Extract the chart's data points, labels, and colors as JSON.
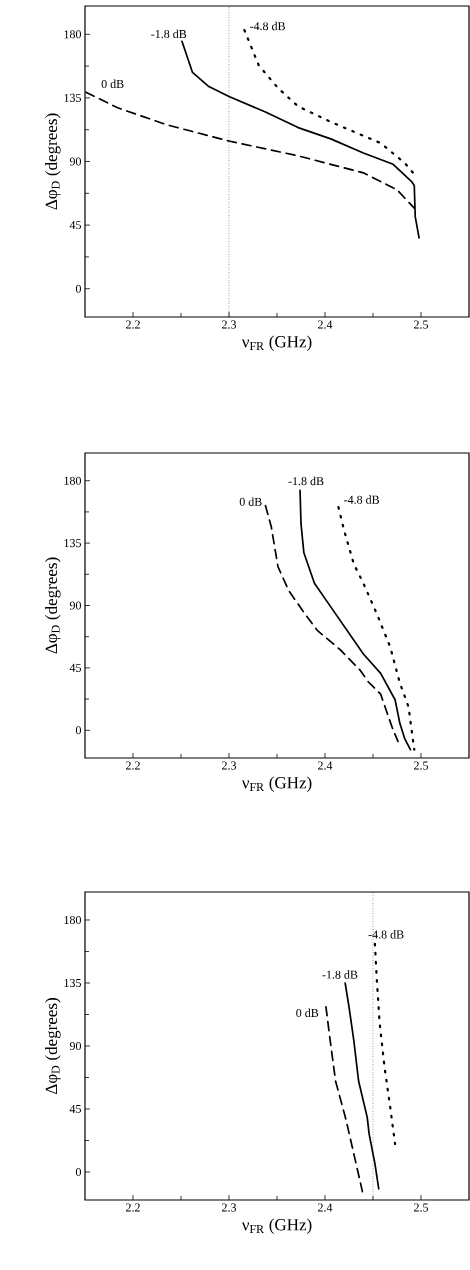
{
  "chart_data": [
    {
      "type": "line",
      "xlabel": "ν$_{FR}$ (GHz)",
      "ylabel": "Δφ$_{D}$ (degrees)",
      "xlim": [
        2.15,
        2.55
      ],
      "ylim": [
        -20,
        200
      ],
      "xticks": [
        2.2,
        2.3,
        2.4,
        2.5,
        {
          "value": 2.25,
          "label": null
        },
        {
          "value": 2.35,
          "label": null
        },
        {
          "value": 2.45,
          "label": null
        }
      ],
      "yticks": [
        0,
        45,
        90,
        135,
        180,
        {
          "value": 22.5,
          "label": null
        },
        {
          "value": 67.5,
          "label": null
        },
        {
          "value": 112.5,
          "label": null
        },
        {
          "value": 157.5,
          "label": null
        }
      ],
      "ref_lines": [
        {
          "axis": "x",
          "value": 2.3,
          "line_style": "dotted",
          "color": "#000000"
        }
      ],
      "series": [
        {
          "name": "0 dB",
          "color": "#000000",
          "line_style": "dashed",
          "x": [
            2.151,
            2.184,
            2.235,
            2.3,
            2.372,
            2.44,
            2.475,
            2.493
          ],
          "values": [
            139,
            128,
            116,
            104.5,
            94,
            82,
            70,
            57
          ]
        },
        {
          "name": "-1.8 dB",
          "color": "#000000",
          "line_style": "solid",
          "x": [
            2.251,
            2.262,
            2.279,
            2.3,
            2.338,
            2.372,
            2.406,
            2.44,
            2.471,
            2.49,
            2.493,
            2.494,
            2.498
          ],
          "values": [
            175,
            153,
            143,
            136,
            125,
            114,
            106,
            96,
            88,
            76,
            73,
            51,
            36
          ]
        },
        {
          "name": "-4.8 dB",
          "color": "#000000",
          "line_style": "dotted",
          "x": [
            2.316,
            2.331,
            2.351,
            2.372,
            2.406,
            2.458,
            2.483,
            2.493
          ],
          "values": [
            183,
            158,
            142,
            129,
            118,
            103,
            89,
            81
          ]
        }
      ]
    },
    {
      "type": "line",
      "xlabel": "ν$_{FR}$ (GHz)",
      "ylabel": "Δφ$_{D}$ (degrees)",
      "xlim": [
        2.15,
        2.55
      ],
      "ylim": [
        -20,
        200
      ],
      "xticks": [
        2.2,
        2.3,
        2.4,
        2.5,
        {
          "value": 2.25,
          "label": null
        },
        {
          "value": 2.35,
          "label": null
        },
        {
          "value": 2.45,
          "label": null
        }
      ],
      "yticks": [
        0,
        45,
        90,
        135,
        180,
        {
          "value": 22.5,
          "label": null
        },
        {
          "value": 67.5,
          "label": null
        },
        {
          "value": 112.5,
          "label": null
        },
        {
          "value": 157.5,
          "label": null
        }
      ],
      "series": [
        {
          "name": "0 dB",
          "color": "#000000",
          "line_style": "dashed",
          "x": [
            2.338,
            2.344,
            2.351,
            2.362,
            2.379,
            2.392,
            2.416,
            2.437,
            2.445,
            2.458,
            2.47,
            2.476
          ],
          "values": [
            162,
            147,
            118,
            101,
            84,
            72,
            58,
            43,
            35,
            26,
            2,
            -8
          ]
        },
        {
          "name": "-1.8 dB",
          "color": "#000000",
          "line_style": "solid",
          "x": [
            2.374,
            2.375,
            2.378,
            2.389,
            2.406,
            2.423,
            2.44,
            2.458,
            2.473,
            2.478,
            2.483,
            2.489
          ],
          "values": [
            173,
            149,
            128,
            106,
            89,
            72,
            55,
            41,
            22,
            5,
            -6,
            -14
          ]
        },
        {
          "name": "-4.8 dB",
          "color": "#000000",
          "line_style": "dotted",
          "x": [
            2.414,
            2.42,
            2.43,
            2.44,
            2.454,
            2.468,
            2.478,
            2.487,
            2.493
          ],
          "values": [
            161,
            144,
            120,
            106,
            84,
            60,
            34,
            17,
            -14
          ]
        }
      ]
    },
    {
      "type": "line",
      "xlabel": "ν$_{FR}$ (GHz)",
      "ylabel": "Δφ$_{D}$ (degrees)",
      "xlim": [
        2.15,
        2.55
      ],
      "ylim": [
        -20,
        200
      ],
      "xticks": [
        2.2,
        2.3,
        2.4,
        2.5,
        {
          "value": 2.25,
          "label": null
        },
        {
          "value": 2.35,
          "label": null
        },
        {
          "value": 2.45,
          "label": null
        }
      ],
      "yticks": [
        0,
        45,
        90,
        135,
        180,
        {
          "value": 22.5,
          "label": null
        },
        {
          "value": 67.5,
          "label": null
        },
        {
          "value": 112.5,
          "label": null
        },
        {
          "value": 157.5,
          "label": null
        }
      ],
      "ref_lines": [
        {
          "axis": "x",
          "value": 2.45,
          "line_style": "dotted",
          "color": "#000000"
        }
      ],
      "series": [
        {
          "name": "0 dB",
          "color": "#000000",
          "line_style": "dashed",
          "x": [
            2.401,
            2.405,
            2.411,
            2.422,
            2.43,
            2.439
          ],
          "values": [
            118,
            96,
            65,
            37,
            13,
            -14
          ]
        },
        {
          "name": "-1.8 dB",
          "color": "#000000",
          "line_style": "solid",
          "x": [
            2.421,
            2.425,
            2.43,
            2.435,
            2.444,
            2.446,
            2.452,
            2.456
          ],
          "values": [
            135,
            118,
            94,
            65,
            39,
            27,
            6,
            -12
          ]
        },
        {
          "name": "-4.8 dB",
          "color": "#000000",
          "line_style": "dotted",
          "x": [
            2.452,
            2.454,
            2.457,
            2.462,
            2.468,
            2.473
          ],
          "values": [
            163,
            137,
            106,
            75,
            46,
            20
          ]
        }
      ]
    }
  ]
}
